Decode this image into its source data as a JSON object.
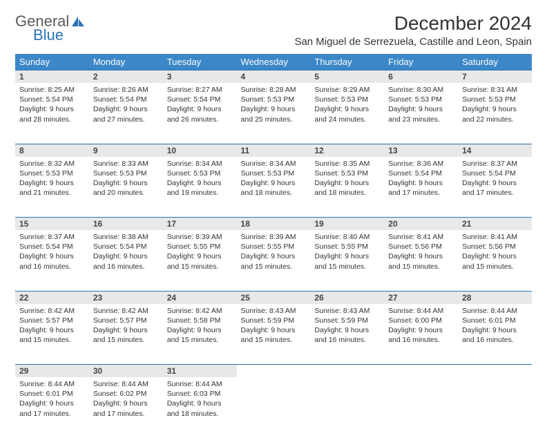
{
  "logo": {
    "main": "General",
    "sub": "Blue"
  },
  "title": "December 2024",
  "location": "San Miguel de Serrezuela, Castille and Leon, Spain",
  "colors": {
    "header_bg": "#3b87c8",
    "header_text": "#ffffff",
    "daynum_bg": "#e8e8e8",
    "accent_border": "#2d72b5",
    "body_text": "#333333",
    "logo_gray": "#5a5a5a",
    "logo_blue": "#2d72b5"
  },
  "weekdays": [
    "Sunday",
    "Monday",
    "Tuesday",
    "Wednesday",
    "Thursday",
    "Friday",
    "Saturday"
  ],
  "weeks": [
    [
      {
        "n": "1",
        "sr": "Sunrise: 8:25 AM",
        "ss": "Sunset: 5:54 PM",
        "d1": "Daylight: 9 hours",
        "d2": "and 28 minutes."
      },
      {
        "n": "2",
        "sr": "Sunrise: 8:26 AM",
        "ss": "Sunset: 5:54 PM",
        "d1": "Daylight: 9 hours",
        "d2": "and 27 minutes."
      },
      {
        "n": "3",
        "sr": "Sunrise: 8:27 AM",
        "ss": "Sunset: 5:54 PM",
        "d1": "Daylight: 9 hours",
        "d2": "and 26 minutes."
      },
      {
        "n": "4",
        "sr": "Sunrise: 8:28 AM",
        "ss": "Sunset: 5:53 PM",
        "d1": "Daylight: 9 hours",
        "d2": "and 25 minutes."
      },
      {
        "n": "5",
        "sr": "Sunrise: 8:29 AM",
        "ss": "Sunset: 5:53 PM",
        "d1": "Daylight: 9 hours",
        "d2": "and 24 minutes."
      },
      {
        "n": "6",
        "sr": "Sunrise: 8:30 AM",
        "ss": "Sunset: 5:53 PM",
        "d1": "Daylight: 9 hours",
        "d2": "and 23 minutes."
      },
      {
        "n": "7",
        "sr": "Sunrise: 8:31 AM",
        "ss": "Sunset: 5:53 PM",
        "d1": "Daylight: 9 hours",
        "d2": "and 22 minutes."
      }
    ],
    [
      {
        "n": "8",
        "sr": "Sunrise: 8:32 AM",
        "ss": "Sunset: 5:53 PM",
        "d1": "Daylight: 9 hours",
        "d2": "and 21 minutes."
      },
      {
        "n": "9",
        "sr": "Sunrise: 8:33 AM",
        "ss": "Sunset: 5:53 PM",
        "d1": "Daylight: 9 hours",
        "d2": "and 20 minutes."
      },
      {
        "n": "10",
        "sr": "Sunrise: 8:34 AM",
        "ss": "Sunset: 5:53 PM",
        "d1": "Daylight: 9 hours",
        "d2": "and 19 minutes."
      },
      {
        "n": "11",
        "sr": "Sunrise: 8:34 AM",
        "ss": "Sunset: 5:53 PM",
        "d1": "Daylight: 9 hours",
        "d2": "and 18 minutes."
      },
      {
        "n": "12",
        "sr": "Sunrise: 8:35 AM",
        "ss": "Sunset: 5:53 PM",
        "d1": "Daylight: 9 hours",
        "d2": "and 18 minutes."
      },
      {
        "n": "13",
        "sr": "Sunrise: 8:36 AM",
        "ss": "Sunset: 5:54 PM",
        "d1": "Daylight: 9 hours",
        "d2": "and 17 minutes."
      },
      {
        "n": "14",
        "sr": "Sunrise: 8:37 AM",
        "ss": "Sunset: 5:54 PM",
        "d1": "Daylight: 9 hours",
        "d2": "and 17 minutes."
      }
    ],
    [
      {
        "n": "15",
        "sr": "Sunrise: 8:37 AM",
        "ss": "Sunset: 5:54 PM",
        "d1": "Daylight: 9 hours",
        "d2": "and 16 minutes."
      },
      {
        "n": "16",
        "sr": "Sunrise: 8:38 AM",
        "ss": "Sunset: 5:54 PM",
        "d1": "Daylight: 9 hours",
        "d2": "and 16 minutes."
      },
      {
        "n": "17",
        "sr": "Sunrise: 8:39 AM",
        "ss": "Sunset: 5:55 PM",
        "d1": "Daylight: 9 hours",
        "d2": "and 15 minutes."
      },
      {
        "n": "18",
        "sr": "Sunrise: 8:39 AM",
        "ss": "Sunset: 5:55 PM",
        "d1": "Daylight: 9 hours",
        "d2": "and 15 minutes."
      },
      {
        "n": "19",
        "sr": "Sunrise: 8:40 AM",
        "ss": "Sunset: 5:55 PM",
        "d1": "Daylight: 9 hours",
        "d2": "and 15 minutes."
      },
      {
        "n": "20",
        "sr": "Sunrise: 8:41 AM",
        "ss": "Sunset: 5:56 PM",
        "d1": "Daylight: 9 hours",
        "d2": "and 15 minutes."
      },
      {
        "n": "21",
        "sr": "Sunrise: 8:41 AM",
        "ss": "Sunset: 5:56 PM",
        "d1": "Daylight: 9 hours",
        "d2": "and 15 minutes."
      }
    ],
    [
      {
        "n": "22",
        "sr": "Sunrise: 8:42 AM",
        "ss": "Sunset: 5:57 PM",
        "d1": "Daylight: 9 hours",
        "d2": "and 15 minutes."
      },
      {
        "n": "23",
        "sr": "Sunrise: 8:42 AM",
        "ss": "Sunset: 5:57 PM",
        "d1": "Daylight: 9 hours",
        "d2": "and 15 minutes."
      },
      {
        "n": "24",
        "sr": "Sunrise: 8:42 AM",
        "ss": "Sunset: 5:58 PM",
        "d1": "Daylight: 9 hours",
        "d2": "and 15 minutes."
      },
      {
        "n": "25",
        "sr": "Sunrise: 8:43 AM",
        "ss": "Sunset: 5:59 PM",
        "d1": "Daylight: 9 hours",
        "d2": "and 15 minutes."
      },
      {
        "n": "26",
        "sr": "Sunrise: 8:43 AM",
        "ss": "Sunset: 5:59 PM",
        "d1": "Daylight: 9 hours",
        "d2": "and 16 minutes."
      },
      {
        "n": "27",
        "sr": "Sunrise: 8:44 AM",
        "ss": "Sunset: 6:00 PM",
        "d1": "Daylight: 9 hours",
        "d2": "and 16 minutes."
      },
      {
        "n": "28",
        "sr": "Sunrise: 8:44 AM",
        "ss": "Sunset: 6:01 PM",
        "d1": "Daylight: 9 hours",
        "d2": "and 16 minutes."
      }
    ],
    [
      {
        "n": "29",
        "sr": "Sunrise: 8:44 AM",
        "ss": "Sunset: 6:01 PM",
        "d1": "Daylight: 9 hours",
        "d2": "and 17 minutes."
      },
      {
        "n": "30",
        "sr": "Sunrise: 8:44 AM",
        "ss": "Sunset: 6:02 PM",
        "d1": "Daylight: 9 hours",
        "d2": "and 17 minutes."
      },
      {
        "n": "31",
        "sr": "Sunrise: 8:44 AM",
        "ss": "Sunset: 6:03 PM",
        "d1": "Daylight: 9 hours",
        "d2": "and 18 minutes."
      },
      null,
      null,
      null,
      null
    ]
  ]
}
